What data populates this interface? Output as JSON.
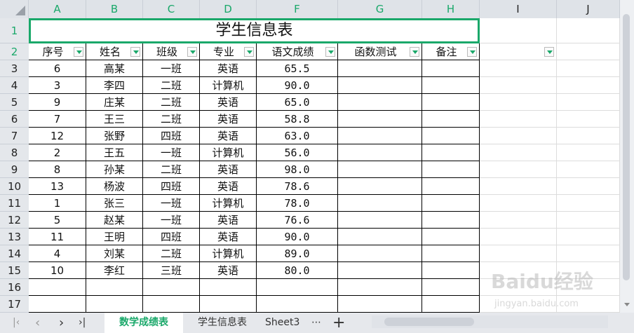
{
  "columns": [
    "A",
    "B",
    "C",
    "D",
    "F",
    "G",
    "H",
    "I",
    "J"
  ],
  "title": "学生信息表",
  "headers": [
    "序号",
    "姓名",
    "班级",
    "专业",
    "语文成绩",
    "函数测试",
    "备注"
  ],
  "rows": [
    [
      "6",
      "高某",
      "一班",
      "英语",
      "65.5"
    ],
    [
      "3",
      "李四",
      "二班",
      "计算机",
      "90.0"
    ],
    [
      "9",
      "庄某",
      "二班",
      "英语",
      "65.0"
    ],
    [
      "7",
      "王三",
      "二班",
      "英语",
      "58.8"
    ],
    [
      "12",
      "张野",
      "四班",
      "英语",
      "63.0"
    ],
    [
      "2",
      "王五",
      "一班",
      "计算机",
      "56.0"
    ],
    [
      "8",
      "孙某",
      "二班",
      "英语",
      "98.0"
    ],
    [
      "13",
      "杨波",
      "四班",
      "英语",
      "78.6"
    ],
    [
      "1",
      "张三",
      "一班",
      "计算机",
      "78.0"
    ],
    [
      "5",
      "赵某",
      "一班",
      "英语",
      "76.6"
    ],
    [
      "11",
      "王明",
      "四班",
      "英语",
      "90.0"
    ],
    [
      "4",
      "刘某",
      "二班",
      "计算机",
      "89.0"
    ],
    [
      "10",
      "李红",
      "三班",
      "英语",
      "80.0"
    ]
  ],
  "row_numbers": [
    "1",
    "2",
    "3",
    "4",
    "5",
    "6",
    "7",
    "8",
    "9",
    "10",
    "11",
    "12",
    "13",
    "14",
    "15",
    "16",
    "17"
  ],
  "sheet_tabs": [
    "数学成绩表",
    "学生信息表",
    "Sheet3"
  ],
  "active_tab": "数学成绩表",
  "more_tabs": "⋯",
  "add_sheet": "+",
  "accent": "#1aa86a",
  "watermark": "Baidu经验 jingyan.baidu.com"
}
